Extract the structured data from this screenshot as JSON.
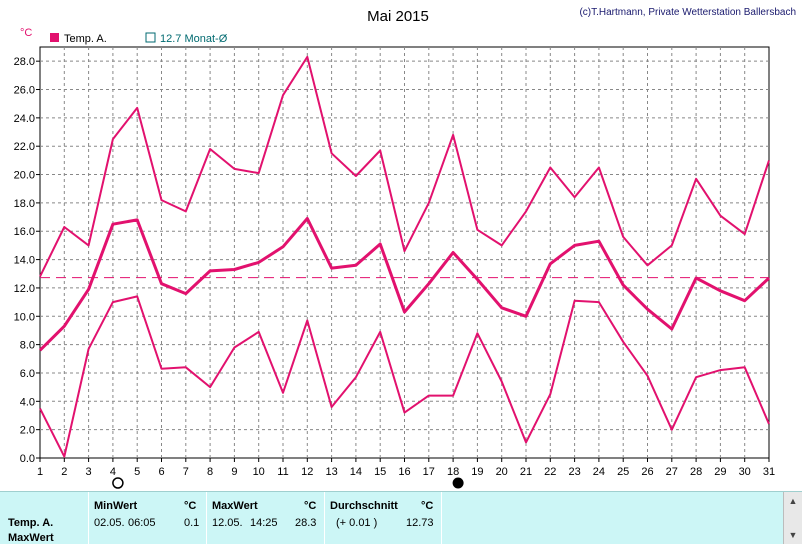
{
  "chart_data": {
    "type": "line",
    "title": "Mai 2015",
    "credit": "(c)T.Hartmann, Private Wetterstation Ballersbach",
    "ylabel": "°C",
    "ylim": [
      0,
      29
    ],
    "yticks": [
      "0.0",
      "2.0",
      "4.0",
      "6.0",
      "8.0",
      "10.0",
      "12.0",
      "14.0",
      "16.0",
      "18.0",
      "20.0",
      "22.0",
      "24.0",
      "26.0",
      "28.0"
    ],
    "x": [
      1,
      2,
      3,
      4,
      5,
      6,
      7,
      8,
      9,
      10,
      11,
      12,
      13,
      14,
      15,
      16,
      17,
      18,
      19,
      20,
      21,
      22,
      23,
      24,
      25,
      26,
      27,
      28,
      29,
      30,
      31
    ],
    "grid": true,
    "legend": {
      "position": "top-left",
      "series_label": "Temp. A.",
      "average_label": "12.7 Monat-Ø"
    },
    "series": [
      {
        "values": [
          12.8,
          16.3,
          15.0,
          22.5,
          24.7,
          18.2,
          17.4,
          21.8,
          20.4,
          20.1,
          25.6,
          28.3,
          21.5,
          19.9,
          21.7,
          14.6,
          18.0,
          22.8,
          16.1,
          15.0,
          17.4,
          20.5,
          18.4,
          20.5,
          15.6,
          13.6,
          15.0,
          19.7,
          17.1,
          15.8,
          21.0
        ]
      },
      {
        "values": [
          7.6,
          9.3,
          11.9,
          16.5,
          16.8,
          12.3,
          11.6,
          13.2,
          13.3,
          13.8,
          14.9,
          16.9,
          13.4,
          13.6,
          15.1,
          10.3,
          12.3,
          14.5,
          12.6,
          10.6,
          10.0,
          13.7,
          15.0,
          15.3,
          12.2,
          10.5,
          9.1,
          12.7,
          11.8,
          11.1,
          12.7
        ]
      },
      {
        "values": [
          3.5,
          0.1,
          7.7,
          11.0,
          11.4,
          6.3,
          6.4,
          5.0,
          7.8,
          8.9,
          4.6,
          9.7,
          3.6,
          5.7,
          8.9,
          3.2,
          4.4,
          4.4,
          8.8,
          5.4,
          1.1,
          4.5,
          11.1,
          11.0,
          8.2,
          5.8,
          2.0,
          5.7,
          6.2,
          6.4,
          2.4
        ]
      }
    ],
    "monthly_average": 12.73,
    "moon_markers": [
      {
        "day": 4,
        "phase": "full-moon"
      },
      {
        "day": 18,
        "phase": "new-moon"
      }
    ],
    "colors": {
      "line": "#e2116e",
      "grid": "#888888",
      "legend_avg": "#006a70",
      "text": "#000000"
    }
  },
  "table": {
    "row_label": "Temp. A.",
    "row_label2": "MaxWert",
    "min_header": "MinWert",
    "min_unit": "°C",
    "min_date": "02.05.",
    "min_time": "06:05",
    "min_value": "0.1",
    "max_header": "MaxWert",
    "max_unit": "°C",
    "max_date": "12.05.",
    "max_time": "14:25",
    "max_value": "28.3",
    "avg_header": "Durchschnitt",
    "avg_unit": "°C",
    "avg_delta": "(+ 0.01 )",
    "avg_value": "12.73"
  }
}
